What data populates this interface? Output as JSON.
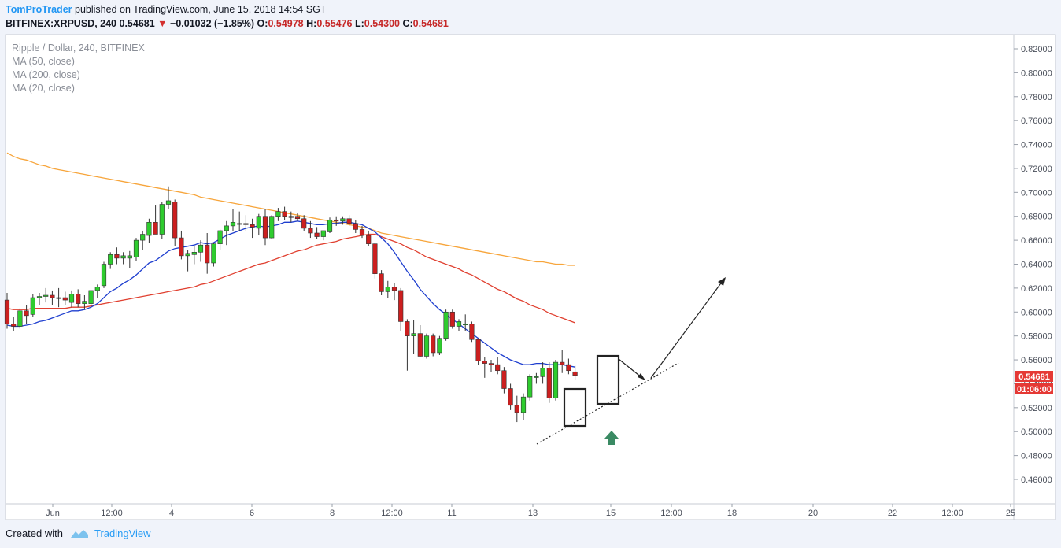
{
  "header": {
    "author": "TomProTrader",
    "published_text": "published on TradingView.com, June 15, 2018 14:54 SGT"
  },
  "ohlc_bar": {
    "symbol": "BITFINEX:XRPUSD, 240",
    "price": "0.54681",
    "change": "−0.01032 (−1.85%)",
    "o_label": "O:",
    "o": "0.54978",
    "h_label": "H:",
    "h": "0.55476",
    "l_label": "L:",
    "l": "0.54300",
    "c_label": "C:",
    "c": "0.54681"
  },
  "legend": {
    "instrument": "Ripple / Dollar, 240, BITFINEX",
    "studies": [
      "MA (50, close)",
      "MA (200, close)",
      "MA (20, close)"
    ]
  },
  "price_axis": {
    "ticks": [
      "0.82000",
      "0.80000",
      "0.78000",
      "0.76000",
      "0.74000",
      "0.72000",
      "0.70000",
      "0.68000",
      "0.66000",
      "0.64000",
      "0.62000",
      "0.60000",
      "0.58000",
      "0.56000",
      "0.54000",
      "0.52000",
      "0.50000",
      "0.48000",
      "0.46000"
    ],
    "last_price_label": "0.54681",
    "countdown_label": "01:06:00"
  },
  "time_axis": {
    "labels": [
      "Jun",
      "12:00",
      "4",
      "6",
      "8",
      "12:00",
      "11",
      "13",
      "15",
      "12:00",
      "18",
      "20",
      "22",
      "12:00",
      "25"
    ]
  },
  "footer": {
    "created_with": "Created with",
    "brand": "TradingView"
  },
  "colors": {
    "up_candle": "#2ecc2e",
    "down_candle": "#cc1f1f",
    "ma20": "#1f3fcf",
    "ma50": "#e04030",
    "ma200": "#f7a53b",
    "up_arrow": "#3a8a63",
    "price_label_bg": "#e53935"
  },
  "chart_data": {
    "type": "candlestick",
    "title": "Ripple / Dollar, 240, BITFINEX",
    "ylim": [
      0.45,
      0.83
    ],
    "y_ticks": [
      0.82,
      0.8,
      0.78,
      0.76,
      0.74,
      0.72,
      0.7,
      0.68,
      0.66,
      0.64,
      0.62,
      0.6,
      0.58,
      0.56,
      0.54,
      0.52,
      0.5,
      0.48,
      0.46
    ],
    "candles": [
      {
        "o": 0.61,
        "h": 0.616,
        "l": 0.586,
        "c": 0.59
      },
      {
        "o": 0.59,
        "h": 0.596,
        "l": 0.584,
        "c": 0.588
      },
      {
        "o": 0.588,
        "h": 0.603,
        "l": 0.586,
        "c": 0.601
      },
      {
        "o": 0.601,
        "h": 0.606,
        "l": 0.59,
        "c": 0.597
      },
      {
        "o": 0.598,
        "h": 0.615,
        "l": 0.596,
        "c": 0.612
      },
      {
        "o": 0.612,
        "h": 0.616,
        "l": 0.606,
        "c": 0.613
      },
      {
        "o": 0.613,
        "h": 0.62,
        "l": 0.608,
        "c": 0.614
      },
      {
        "o": 0.614,
        "h": 0.618,
        "l": 0.606,
        "c": 0.612
      },
      {
        "o": 0.612,
        "h": 0.62,
        "l": 0.604,
        "c": 0.612
      },
      {
        "o": 0.612,
        "h": 0.617,
        "l": 0.606,
        "c": 0.61
      },
      {
        "o": 0.608,
        "h": 0.618,
        "l": 0.604,
        "c": 0.615
      },
      {
        "o": 0.615,
        "h": 0.619,
        "l": 0.604,
        "c": 0.607
      },
      {
        "o": 0.607,
        "h": 0.614,
        "l": 0.602,
        "c": 0.609
      },
      {
        "o": 0.607,
        "h": 0.618,
        "l": 0.605,
        "c": 0.618
      },
      {
        "o": 0.618,
        "h": 0.623,
        "l": 0.612,
        "c": 0.621
      },
      {
        "o": 0.622,
        "h": 0.642,
        "l": 0.62,
        "c": 0.64
      },
      {
        "o": 0.64,
        "h": 0.65,
        "l": 0.636,
        "c": 0.648
      },
      {
        "o": 0.648,
        "h": 0.654,
        "l": 0.64,
        "c": 0.645
      },
      {
        "o": 0.645,
        "h": 0.65,
        "l": 0.64,
        "c": 0.647
      },
      {
        "o": 0.645,
        "h": 0.651,
        "l": 0.637,
        "c": 0.647
      },
      {
        "o": 0.646,
        "h": 0.662,
        "l": 0.643,
        "c": 0.66
      },
      {
        "o": 0.66,
        "h": 0.668,
        "l": 0.652,
        "c": 0.665
      },
      {
        "o": 0.664,
        "h": 0.678,
        "l": 0.658,
        "c": 0.675
      },
      {
        "o": 0.675,
        "h": 0.689,
        "l": 0.665,
        "c": 0.665
      },
      {
        "o": 0.665,
        "h": 0.692,
        "l": 0.661,
        "c": 0.69
      },
      {
        "o": 0.69,
        "h": 0.705,
        "l": 0.686,
        "c": 0.693
      },
      {
        "o": 0.692,
        "h": 0.694,
        "l": 0.655,
        "c": 0.662
      },
      {
        "o": 0.662,
        "h": 0.668,
        "l": 0.644,
        "c": 0.647
      },
      {
        "o": 0.647,
        "h": 0.652,
        "l": 0.634,
        "c": 0.649
      },
      {
        "o": 0.648,
        "h": 0.655,
        "l": 0.64,
        "c": 0.65
      },
      {
        "o": 0.65,
        "h": 0.66,
        "l": 0.642,
        "c": 0.656
      },
      {
        "o": 0.656,
        "h": 0.666,
        "l": 0.632,
        "c": 0.641
      },
      {
        "o": 0.641,
        "h": 0.658,
        "l": 0.638,
        "c": 0.657
      },
      {
        "o": 0.657,
        "h": 0.669,
        "l": 0.652,
        "c": 0.668
      },
      {
        "o": 0.668,
        "h": 0.676,
        "l": 0.656,
        "c": 0.672
      },
      {
        "o": 0.672,
        "h": 0.686,
        "l": 0.668,
        "c": 0.675
      },
      {
        "o": 0.674,
        "h": 0.684,
        "l": 0.668,
        "c": 0.674
      },
      {
        "o": 0.674,
        "h": 0.681,
        "l": 0.668,
        "c": 0.673
      },
      {
        "o": 0.673,
        "h": 0.678,
        "l": 0.662,
        "c": 0.671
      },
      {
        "o": 0.67,
        "h": 0.682,
        "l": 0.664,
        "c": 0.68
      },
      {
        "o": 0.68,
        "h": 0.686,
        "l": 0.656,
        "c": 0.662
      },
      {
        "o": 0.662,
        "h": 0.681,
        "l": 0.661,
        "c": 0.68
      },
      {
        "o": 0.68,
        "h": 0.687,
        "l": 0.676,
        "c": 0.684
      },
      {
        "o": 0.684,
        "h": 0.688,
        "l": 0.677,
        "c": 0.68
      },
      {
        "o": 0.68,
        "h": 0.684,
        "l": 0.675,
        "c": 0.679
      },
      {
        "o": 0.68,
        "h": 0.683,
        "l": 0.676,
        "c": 0.678
      },
      {
        "o": 0.678,
        "h": 0.681,
        "l": 0.668,
        "c": 0.67
      },
      {
        "o": 0.67,
        "h": 0.676,
        "l": 0.662,
        "c": 0.666
      },
      {
        "o": 0.666,
        "h": 0.671,
        "l": 0.661,
        "c": 0.663
      },
      {
        "o": 0.663,
        "h": 0.668,
        "l": 0.66,
        "c": 0.668
      },
      {
        "o": 0.667,
        "h": 0.679,
        "l": 0.666,
        "c": 0.677
      },
      {
        "o": 0.677,
        "h": 0.68,
        "l": 0.672,
        "c": 0.676
      },
      {
        "o": 0.676,
        "h": 0.68,
        "l": 0.673,
        "c": 0.678
      },
      {
        "o": 0.678,
        "h": 0.681,
        "l": 0.672,
        "c": 0.674
      },
      {
        "o": 0.674,
        "h": 0.677,
        "l": 0.666,
        "c": 0.669
      },
      {
        "o": 0.669,
        "h": 0.672,
        "l": 0.662,
        "c": 0.664
      },
      {
        "o": 0.664,
        "h": 0.668,
        "l": 0.655,
        "c": 0.657
      },
      {
        "o": 0.657,
        "h": 0.658,
        "l": 0.628,
        "c": 0.632
      },
      {
        "o": 0.632,
        "h": 0.635,
        "l": 0.614,
        "c": 0.617
      },
      {
        "o": 0.617,
        "h": 0.626,
        "l": 0.612,
        "c": 0.621
      },
      {
        "o": 0.621,
        "h": 0.624,
        "l": 0.61,
        "c": 0.618
      },
      {
        "o": 0.618,
        "h": 0.62,
        "l": 0.584,
        "c": 0.592
      },
      {
        "o": 0.592,
        "h": 0.594,
        "l": 0.551,
        "c": 0.58
      },
      {
        "o": 0.58,
        "h": 0.593,
        "l": 0.565,
        "c": 0.582
      },
      {
        "o": 0.582,
        "h": 0.589,
        "l": 0.562,
        "c": 0.563
      },
      {
        "o": 0.563,
        "h": 0.582,
        "l": 0.561,
        "c": 0.58
      },
      {
        "o": 0.58,
        "h": 0.582,
        "l": 0.563,
        "c": 0.566
      },
      {
        "o": 0.566,
        "h": 0.58,
        "l": 0.564,
        "c": 0.578
      },
      {
        "o": 0.578,
        "h": 0.602,
        "l": 0.576,
        "c": 0.6
      },
      {
        "o": 0.6,
        "h": 0.602,
        "l": 0.586,
        "c": 0.588
      },
      {
        "o": 0.588,
        "h": 0.594,
        "l": 0.584,
        "c": 0.592
      },
      {
        "o": 0.59,
        "h": 0.598,
        "l": 0.584,
        "c": 0.59
      },
      {
        "o": 0.59,
        "h": 0.592,
        "l": 0.575,
        "c": 0.577
      },
      {
        "o": 0.577,
        "h": 0.578,
        "l": 0.556,
        "c": 0.559
      },
      {
        "o": 0.559,
        "h": 0.562,
        "l": 0.545,
        "c": 0.557
      },
      {
        "o": 0.557,
        "h": 0.56,
        "l": 0.55,
        "c": 0.556
      },
      {
        "o": 0.556,
        "h": 0.562,
        "l": 0.548,
        "c": 0.551
      },
      {
        "o": 0.551,
        "h": 0.554,
        "l": 0.532,
        "c": 0.536
      },
      {
        "o": 0.536,
        "h": 0.54,
        "l": 0.518,
        "c": 0.522
      },
      {
        "o": 0.522,
        "h": 0.53,
        "l": 0.508,
        "c": 0.516
      },
      {
        "o": 0.516,
        "h": 0.532,
        "l": 0.51,
        "c": 0.529
      },
      {
        "o": 0.529,
        "h": 0.548,
        "l": 0.526,
        "c": 0.546
      },
      {
        "o": 0.546,
        "h": 0.549,
        "l": 0.54,
        "c": 0.546
      },
      {
        "o": 0.546,
        "h": 0.558,
        "l": 0.54,
        "c": 0.553
      },
      {
        "o": 0.553,
        "h": 0.558,
        "l": 0.524,
        "c": 0.528
      },
      {
        "o": 0.528,
        "h": 0.56,
        "l": 0.526,
        "c": 0.558
      },
      {
        "o": 0.558,
        "h": 0.568,
        "l": 0.549,
        "c": 0.556
      },
      {
        "o": 0.556,
        "h": 0.561,
        "l": 0.548,
        "c": 0.551
      },
      {
        "o": 0.55,
        "h": 0.555,
        "l": 0.543,
        "c": 0.547
      }
    ],
    "ma20": [
      0.589,
      0.588,
      0.588,
      0.589,
      0.59,
      0.592,
      0.593,
      0.595,
      0.597,
      0.599,
      0.601,
      0.601,
      0.602,
      0.604,
      0.607,
      0.612,
      0.617,
      0.62,
      0.624,
      0.627,
      0.631,
      0.636,
      0.641,
      0.643,
      0.647,
      0.651,
      0.653,
      0.654,
      0.655,
      0.656,
      0.658,
      0.657,
      0.658,
      0.661,
      0.664,
      0.666,
      0.668,
      0.67,
      0.671,
      0.672,
      0.671,
      0.672,
      0.673,
      0.675,
      0.675,
      0.676,
      0.675,
      0.674,
      0.673,
      0.673,
      0.674,
      0.674,
      0.675,
      0.675,
      0.674,
      0.673,
      0.67,
      0.667,
      0.662,
      0.657,
      0.65,
      0.642,
      0.634,
      0.627,
      0.619,
      0.613,
      0.607,
      0.602,
      0.598,
      0.594,
      0.59,
      0.586,
      0.582,
      0.578,
      0.574,
      0.57,
      0.566,
      0.563,
      0.56,
      0.558,
      0.556,
      0.556,
      0.557,
      0.557,
      0.556,
      0.556,
      0.556,
      0.555,
      0.554
    ],
    "ma50": [
      0.603,
      0.602,
      0.602,
      0.602,
      0.603,
      0.603,
      0.603,
      0.603,
      0.603,
      0.603,
      0.604,
      0.604,
      0.604,
      0.605,
      0.606,
      0.607,
      0.608,
      0.609,
      0.61,
      0.611,
      0.612,
      0.613,
      0.614,
      0.615,
      0.616,
      0.617,
      0.618,
      0.619,
      0.62,
      0.621,
      0.623,
      0.624,
      0.626,
      0.628,
      0.63,
      0.632,
      0.634,
      0.636,
      0.638,
      0.64,
      0.641,
      0.643,
      0.645,
      0.647,
      0.649,
      0.651,
      0.652,
      0.654,
      0.656,
      0.657,
      0.658,
      0.659,
      0.661,
      0.662,
      0.663,
      0.664,
      0.665,
      0.665,
      0.663,
      0.661,
      0.659,
      0.657,
      0.654,
      0.652,
      0.649,
      0.646,
      0.644,
      0.642,
      0.64,
      0.638,
      0.636,
      0.633,
      0.631,
      0.628,
      0.625,
      0.622,
      0.619,
      0.617,
      0.614,
      0.611,
      0.609,
      0.606,
      0.604,
      0.602,
      0.599,
      0.597,
      0.595,
      0.593,
      0.591
    ],
    "ma200": [
      0.733,
      0.73,
      0.728,
      0.727,
      0.725,
      0.723,
      0.722,
      0.72,
      0.719,
      0.718,
      0.717,
      0.716,
      0.715,
      0.714,
      0.713,
      0.712,
      0.711,
      0.71,
      0.709,
      0.708,
      0.707,
      0.706,
      0.705,
      0.704,
      0.703,
      0.702,
      0.701,
      0.7,
      0.699,
      0.698,
      0.696,
      0.695,
      0.694,
      0.693,
      0.692,
      0.691,
      0.69,
      0.689,
      0.688,
      0.687,
      0.686,
      0.685,
      0.684,
      0.683,
      0.682,
      0.681,
      0.68,
      0.679,
      0.678,
      0.677,
      0.676,
      0.675,
      0.674,
      0.673,
      0.672,
      0.671,
      0.67,
      0.668,
      0.666,
      0.665,
      0.664,
      0.663,
      0.662,
      0.661,
      0.66,
      0.659,
      0.658,
      0.657,
      0.656,
      0.655,
      0.654,
      0.653,
      0.652,
      0.651,
      0.65,
      0.649,
      0.648,
      0.647,
      0.646,
      0.645,
      0.644,
      0.643,
      0.642,
      0.642,
      0.641,
      0.64,
      0.64,
      0.639,
      0.639
    ]
  }
}
